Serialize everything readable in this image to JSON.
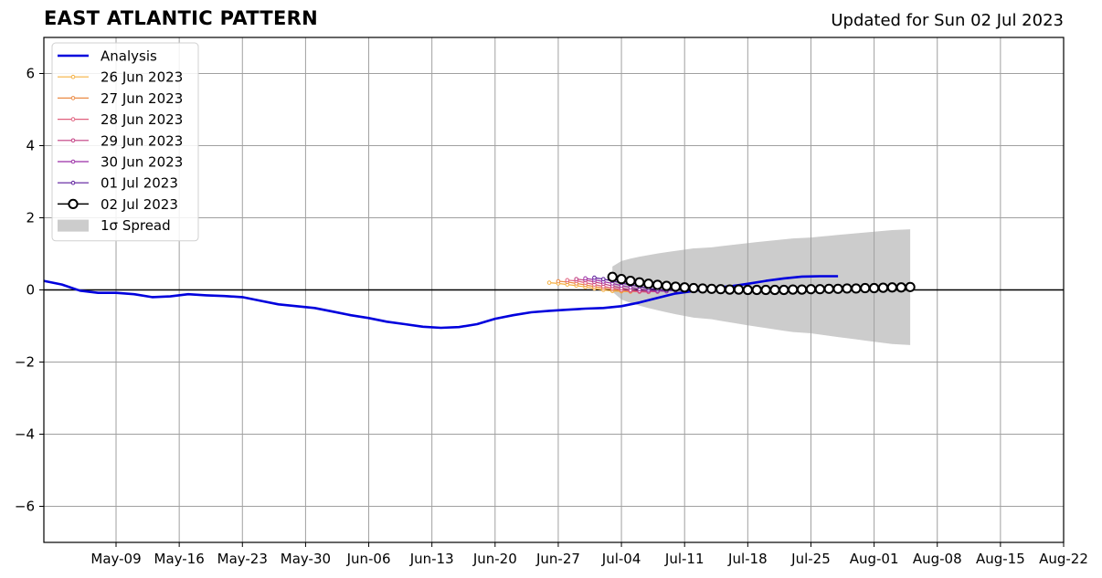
{
  "header": {
    "title": "EAST ATLANTIC PATTERN",
    "updated": "Updated for Sun 02 Jul 2023"
  },
  "chart_data": {
    "type": "line",
    "title": "EAST ATLANTIC PATTERN",
    "subtitle": "Updated for Sun 02 Jul 2023",
    "xlabel": "",
    "ylabel": "",
    "x_range": [
      "2023-05-01",
      "2023-08-22"
    ],
    "ylim": [
      -7,
      7
    ],
    "x_ticks": [
      "2023-05-09",
      "2023-05-16",
      "2023-05-23",
      "2023-05-30",
      "2023-06-06",
      "2023-06-13",
      "2023-06-20",
      "2023-06-27",
      "2023-07-04",
      "2023-07-11",
      "2023-07-18",
      "2023-07-25",
      "2023-08-01",
      "2023-08-08",
      "2023-08-15",
      "2023-08-22"
    ],
    "x_tick_labels": [
      "May-09",
      "May-16",
      "May-23",
      "May-30",
      "Jun-06",
      "Jun-13",
      "Jun-20",
      "Jun-27",
      "Jul-04",
      "Jul-11",
      "Jul-18",
      "Jul-25",
      "Aug-01",
      "Aug-08",
      "Aug-15",
      "Aug-22"
    ],
    "y_ticks": [
      6,
      4,
      2,
      0,
      -2,
      -4,
      -6
    ],
    "y_tick_labels": [
      "6",
      "4",
      "2",
      "0",
      "−2",
      "−4",
      "−6"
    ],
    "grid": true,
    "zero_line": true,
    "legend_position": "top-left",
    "series": [
      {
        "name": "Analysis",
        "color": "#0000dd",
        "style": "line",
        "points": [
          [
            "2023-05-01",
            0.25
          ],
          [
            "2023-05-03",
            0.15
          ],
          [
            "2023-05-05",
            -0.02
          ],
          [
            "2023-05-07",
            -0.08
          ],
          [
            "2023-05-09",
            -0.08
          ],
          [
            "2023-05-11",
            -0.12
          ],
          [
            "2023-05-13",
            -0.2
          ],
          [
            "2023-05-15",
            -0.18
          ],
          [
            "2023-05-17",
            -0.12
          ],
          [
            "2023-05-19",
            -0.15
          ],
          [
            "2023-05-21",
            -0.17
          ],
          [
            "2023-05-23",
            -0.2
          ],
          [
            "2023-05-25",
            -0.3
          ],
          [
            "2023-05-27",
            -0.4
          ],
          [
            "2023-05-29",
            -0.45
          ],
          [
            "2023-05-31",
            -0.5
          ],
          [
            "2023-06-02",
            -0.6
          ],
          [
            "2023-06-04",
            -0.7
          ],
          [
            "2023-06-06",
            -0.78
          ],
          [
            "2023-06-08",
            -0.88
          ],
          [
            "2023-06-10",
            -0.95
          ],
          [
            "2023-06-12",
            -1.02
          ],
          [
            "2023-06-14",
            -1.05
          ],
          [
            "2023-06-16",
            -1.03
          ],
          [
            "2023-06-18",
            -0.95
          ],
          [
            "2023-06-20",
            -0.8
          ],
          [
            "2023-06-22",
            -0.7
          ],
          [
            "2023-06-24",
            -0.62
          ],
          [
            "2023-06-26",
            -0.58
          ],
          [
            "2023-06-28",
            -0.55
          ],
          [
            "2023-06-30",
            -0.52
          ],
          [
            "2023-07-02",
            -0.5
          ],
          [
            "2023-07-04",
            -0.45
          ],
          [
            "2023-07-06",
            -0.35
          ],
          [
            "2023-07-08",
            -0.22
          ],
          [
            "2023-07-10",
            -0.1
          ],
          [
            "2023-07-12",
            -0.03
          ],
          [
            "2023-07-14",
            0.05
          ],
          [
            "2023-07-16",
            0.1
          ],
          [
            "2023-07-18",
            0.17
          ],
          [
            "2023-07-20",
            0.25
          ],
          [
            "2023-07-22",
            0.32
          ],
          [
            "2023-07-24",
            0.37
          ],
          [
            "2023-07-26",
            0.38
          ],
          [
            "2023-07-28",
            0.38
          ]
        ]
      },
      {
        "name": "26 Jun 2023",
        "color": "#f5b041",
        "style": "forecast",
        "start": "2023-06-26",
        "values": [
          0.2,
          0.18,
          0.15,
          0.12,
          0.08,
          0.04,
          0.0,
          -0.03,
          -0.04,
          -0.05
        ]
      },
      {
        "name": "27 Jun 2023",
        "color": "#eb8a44",
        "style": "forecast",
        "start": "2023-06-27",
        "values": [
          0.24,
          0.22,
          0.18,
          0.14,
          0.09,
          0.05,
          0.01,
          -0.02,
          -0.04,
          -0.05
        ]
      },
      {
        "name": "28 Jun 2023",
        "color": "#e0607e",
        "style": "forecast",
        "start": "2023-06-28",
        "values": [
          0.27,
          0.25,
          0.2,
          0.15,
          0.1,
          0.05,
          0.0,
          -0.03,
          -0.05,
          -0.06
        ]
      },
      {
        "name": "29 Jun 2023",
        "color": "#c23c81",
        "style": "forecast",
        "start": "2023-06-29",
        "values": [
          0.3,
          0.27,
          0.22,
          0.17,
          0.11,
          0.05,
          0.0,
          -0.03,
          -0.04,
          -0.05
        ]
      },
      {
        "name": "30 Jun 2023",
        "color": "#9b2fa6",
        "style": "forecast",
        "start": "2023-06-30",
        "values": [
          0.32,
          0.28,
          0.23,
          0.18,
          0.12,
          0.07,
          0.02,
          -0.01,
          -0.03,
          -0.04
        ]
      },
      {
        "name": "01 Jul 2023",
        "color": "#5a1a9b",
        "style": "forecast",
        "start": "2023-07-01",
        "values": [
          0.34,
          0.3,
          0.25,
          0.19,
          0.14,
          0.09,
          0.04,
          0.01,
          -0.01,
          -0.02
        ]
      },
      {
        "name": "02 Jul 2023",
        "color": "#000000",
        "style": "forecast-main",
        "start": "2023-07-03",
        "values": [
          0.36,
          0.3,
          0.25,
          0.21,
          0.17,
          0.14,
          0.11,
          0.09,
          0.07,
          0.05,
          0.04,
          0.03,
          0.02,
          0.01,
          0.01,
          0.0,
          0.0,
          0.0,
          0.0,
          0.0,
          0.01,
          0.01,
          0.02,
          0.02,
          0.03,
          0.03,
          0.04,
          0.04,
          0.05,
          0.05,
          0.06,
          0.07,
          0.07,
          0.08
        ]
      }
    ],
    "spread": {
      "name": "1σ Spread",
      "color": "#cccccc",
      "start": "2023-07-03",
      "end": "2023-08-05",
      "upper_start": 0.65,
      "upper_end": 1.68,
      "lower_start": -0.05,
      "lower_end": -1.53
    }
  }
}
